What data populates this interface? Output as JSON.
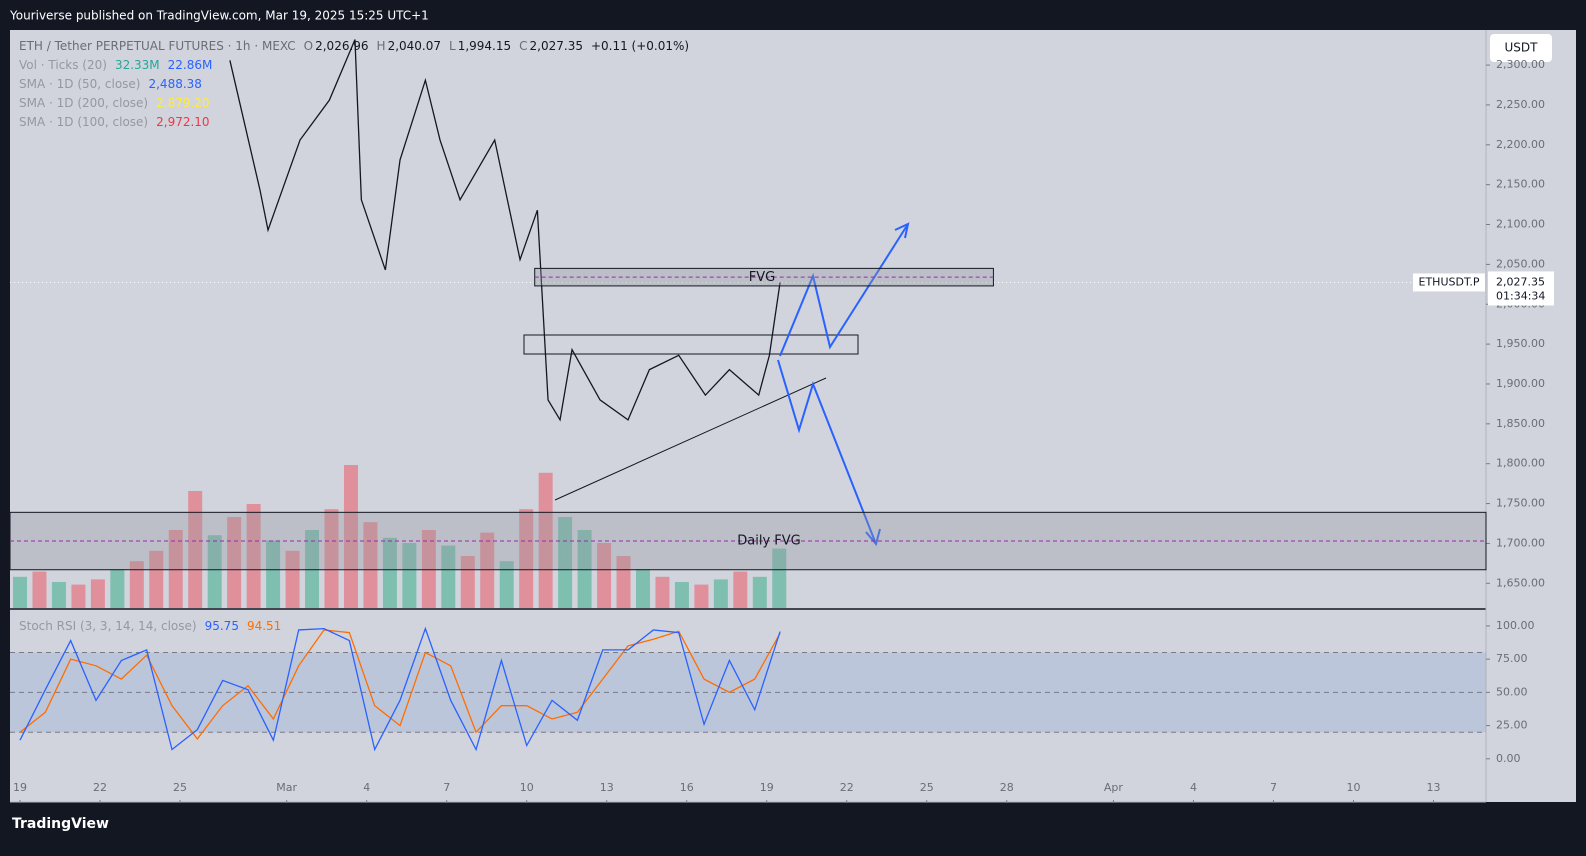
{
  "header": {
    "published": "Youriverse published on TradingView.com, Mar 19, 2025 15:25 UTC+1"
  },
  "footer": {
    "brand": "TradingView"
  },
  "chart_data": {
    "type": "line",
    "symbol": "ETH / Tether PERPETUAL FUTURES · 1h · MEXC",
    "ohlc": [
      {
        "key": "O",
        "value": 2026.96,
        "label": "2,026.96"
      },
      {
        "key": "H",
        "value": 2040.07,
        "label": "2,040.07"
      },
      {
        "key": "L",
        "value": 1994.15,
        "label": "1,994.15"
      },
      {
        "key": "C",
        "value": 2027.35,
        "label": "2,027.35"
      }
    ],
    "change": "+0.11 (+0.01%)",
    "indicators": [
      {
        "name": "Vol · Ticks (20)",
        "values": [
          "32.33M",
          "22.86M"
        ],
        "colors": [
          "#26a69a",
          "#2962ff"
        ]
      },
      {
        "name": "SMA · 1D (50, close)",
        "values": [
          "2,488.38"
        ],
        "colors": [
          "#2962ff"
        ]
      },
      {
        "name": "SMA · 1D (200, close)",
        "values": [
          "2,879.20"
        ],
        "colors": [
          "#ffeb3b"
        ]
      },
      {
        "name": "SMA · 1D (100, close)",
        "values": [
          "2,972.10"
        ],
        "colors": [
          "#f23645"
        ]
      }
    ],
    "currency": "USDT",
    "price_label": {
      "symbol": "ETHUSDT.P",
      "price": {
        "value": 2027.35,
        "label": "2,027.35"
      },
      "countdown": "01:34:34"
    },
    "x": [
      7.87,
      9.0,
      9.3,
      10.5,
      11.6,
      12.56,
      12.8,
      13.7,
      14.25,
      15.2,
      15.75,
      16.5,
      17.8,
      18.75,
      19.4,
      19.8,
      20.25,
      20.7,
      21.75,
      22.8,
      23.6,
      24.7,
      25.7,
      26.6,
      27.7,
      28.1,
      28.5
    ],
    "series": [
      {
        "name": "ETHUSDT.P",
        "color": "#131722",
        "values": [
          2306,
          2143,
          2093,
          2206,
          2256,
          2332,
          2131,
          2043,
          2181,
          2281,
          2206,
          2131,
          2206,
          2056,
          2118,
          1880,
          1855,
          1943,
          1880,
          1855,
          1918,
          1936,
          1886,
          1918,
          1886,
          1936,
          2027.35
        ]
      }
    ],
    "xlim": [
      -0.375,
      54.97
    ],
    "xticks": [
      {
        "value": 0,
        "label": "19"
      },
      {
        "value": 3,
        "label": "22"
      },
      {
        "value": 6,
        "label": "25"
      },
      {
        "value": 10,
        "label": "Mar"
      },
      {
        "value": 13,
        "label": "4"
      },
      {
        "value": 16,
        "label": "7"
      },
      {
        "value": 19,
        "label": "10"
      },
      {
        "value": 22,
        "label": "13"
      },
      {
        "value": 25,
        "label": "16"
      },
      {
        "value": 28,
        "label": "19"
      },
      {
        "value": 31,
        "label": "22"
      },
      {
        "value": 34,
        "label": "25"
      },
      {
        "value": 37,
        "label": "28"
      },
      {
        "value": 41,
        "label": "Apr"
      },
      {
        "value": 44,
        "label": "4"
      },
      {
        "value": 47,
        "label": "7"
      },
      {
        "value": 50,
        "label": "10"
      },
      {
        "value": 53,
        "label": "13"
      }
    ],
    "ylim": [
      1619,
      2344
    ],
    "yticks": [
      {
        "value": 1650,
        "label": "1,650.00"
      },
      {
        "value": 1700,
        "label": "1,700.00"
      },
      {
        "value": 1750,
        "label": "1,750.00"
      },
      {
        "value": 1800,
        "label": "1,800.00"
      },
      {
        "value": 1850,
        "label": "1,850.00"
      },
      {
        "value": 1900,
        "label": "1,900.00"
      },
      {
        "value": 1950,
        "label": "1,950.00"
      },
      {
        "value": 2000,
        "label": "2,000.00"
      },
      {
        "value": 2050,
        "label": "2,050.00"
      },
      {
        "value": 2100,
        "label": "2,100.00"
      },
      {
        "value": 2150,
        "label": "2,150.00"
      },
      {
        "value": 2200,
        "label": "2,200.00"
      },
      {
        "value": 2250,
        "label": "2,250.00"
      },
      {
        "value": 2300,
        "label": "2,300.00"
      }
    ],
    "zones": [
      {
        "label": "FVG",
        "from": 2023,
        "to": 2045,
        "x": [
          19.3,
          36.5
        ],
        "color": "#9598a1"
      },
      {
        "label": "Daily FVG",
        "from": 1667,
        "to": 1739,
        "x": [
          -0.375,
          54.97
        ],
        "color": "#9598a1"
      }
    ],
    "volume": {
      "x": [
        0,
        0.73,
        1.46,
        2.19,
        2.92,
        3.65,
        4.38,
        5.11,
        5.84,
        6.57,
        7.3,
        8.03,
        8.76,
        9.49,
        10.22,
        10.95,
        11.68,
        12.41,
        13.14,
        13.87,
        14.6,
        15.33,
        16.06,
        16.79,
        17.52,
        18.25,
        18.98,
        19.71,
        20.44,
        21.17,
        21.9,
        22.63,
        23.36,
        24.09,
        24.82,
        25.55,
        26.28,
        27.01,
        27.74,
        28.47
      ],
      "values": [
        12,
        14,
        10,
        9,
        11,
        15,
        18,
        22,
        30,
        45,
        28,
        35,
        40,
        26,
        22,
        30,
        38,
        55,
        33,
        27,
        25,
        30,
        24,
        20,
        29,
        18,
        38,
        52,
        35,
        30,
        25,
        20,
        15,
        12,
        10,
        9,
        11,
        14,
        12,
        22.86
      ],
      "colors": [
        "#7fbfb0",
        "#e0909a",
        "#7fbfb0",
        "#e0909a",
        "#e0909a",
        "#7fbfb0",
        "#e0909a",
        "#e0909a",
        "#e0909a",
        "#e0909a",
        "#7fbfb0",
        "#e0909a",
        "#e0909a",
        "#7fbfb0",
        "#e0909a",
        "#7fbfb0",
        "#e0909a",
        "#e0909a",
        "#e0909a",
        "#7fbfb0",
        "#7fbfb0",
        "#e0909a",
        "#7fbfb0",
        "#e0909a",
        "#e0909a",
        "#7fbfb0",
        "#e0909a",
        "#e0909a",
        "#7fbfb0",
        "#7fbfb0",
        "#e0909a",
        "#e0909a",
        "#7fbfb0",
        "#e0909a",
        "#7fbfb0",
        "#e0909a",
        "#7fbfb0",
        "#e0909a",
        "#7fbfb0",
        "#7fbfb0"
      ],
      "y2lim": [
        0,
        80
      ]
    },
    "stoch_rsi": {
      "name": "Stoch RSI (3, 3, 14, 14, close)",
      "x": [
        0,
        0.95,
        1.9,
        2.85,
        3.8,
        4.75,
        5.7,
        6.65,
        7.6,
        8.55,
        9.5,
        10.45,
        11.4,
        12.35,
        13.3,
        14.25,
        15.2,
        16.15,
        17.1,
        18.05,
        19.0,
        19.95,
        20.9,
        21.85,
        22.8,
        23.75,
        24.7,
        25.65,
        26.6,
        27.55,
        28.5
      ],
      "series": [
        {
          "name": "95.75",
          "color": "#2962ff",
          "values": [
            14,
            52,
            89,
            44,
            74,
            82,
            7,
            22,
            59,
            52,
            14,
            97,
            98,
            89,
            7,
            44,
            98,
            44,
            7,
            74,
            10,
            44,
            29,
            82,
            82,
            97,
            95,
            26,
            74,
            37,
            95.75
          ]
        },
        {
          "name": "94.51",
          "color": "#ff6d00",
          "values": [
            20,
            35,
            75,
            70,
            60,
            78,
            40,
            15,
            40,
            55,
            30,
            70,
            97,
            95,
            40,
            25,
            80,
            70,
            20,
            40,
            40,
            30,
            35,
            60,
            85,
            90,
            96,
            60,
            50,
            60,
            94.51
          ]
        }
      ],
      "ylim": [
        -31,
        112
      ],
      "yticks": [
        {
          "value": 0,
          "label": "0.00"
        },
        {
          "value": 25,
          "label": "25.00"
        },
        {
          "value": 50,
          "label": "50.00"
        },
        {
          "value": 75,
          "label": "75.00"
        },
        {
          "value": 100,
          "label": "100.00"
        }
      ],
      "band": [
        20,
        80
      ],
      "levels": [
        20,
        50,
        80
      ]
    }
  }
}
